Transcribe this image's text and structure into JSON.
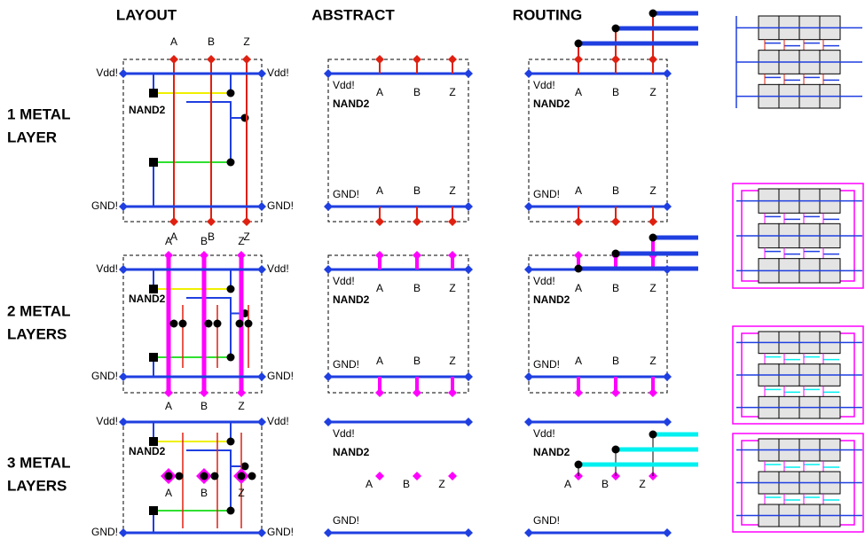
{
  "headers": [
    "LAYOUT",
    "ABSTRACT",
    "ROUTING"
  ],
  "rows": [
    [
      "1 METAL",
      "LAYER"
    ],
    [
      "2 METAL",
      "LAYERS"
    ],
    [
      "3 METAL",
      "LAYERS"
    ]
  ],
  "cell": {
    "power": "Vdd!",
    "ground": "GND!",
    "name": "NAND2",
    "pins": [
      "A",
      "B",
      "Z"
    ]
  }
}
